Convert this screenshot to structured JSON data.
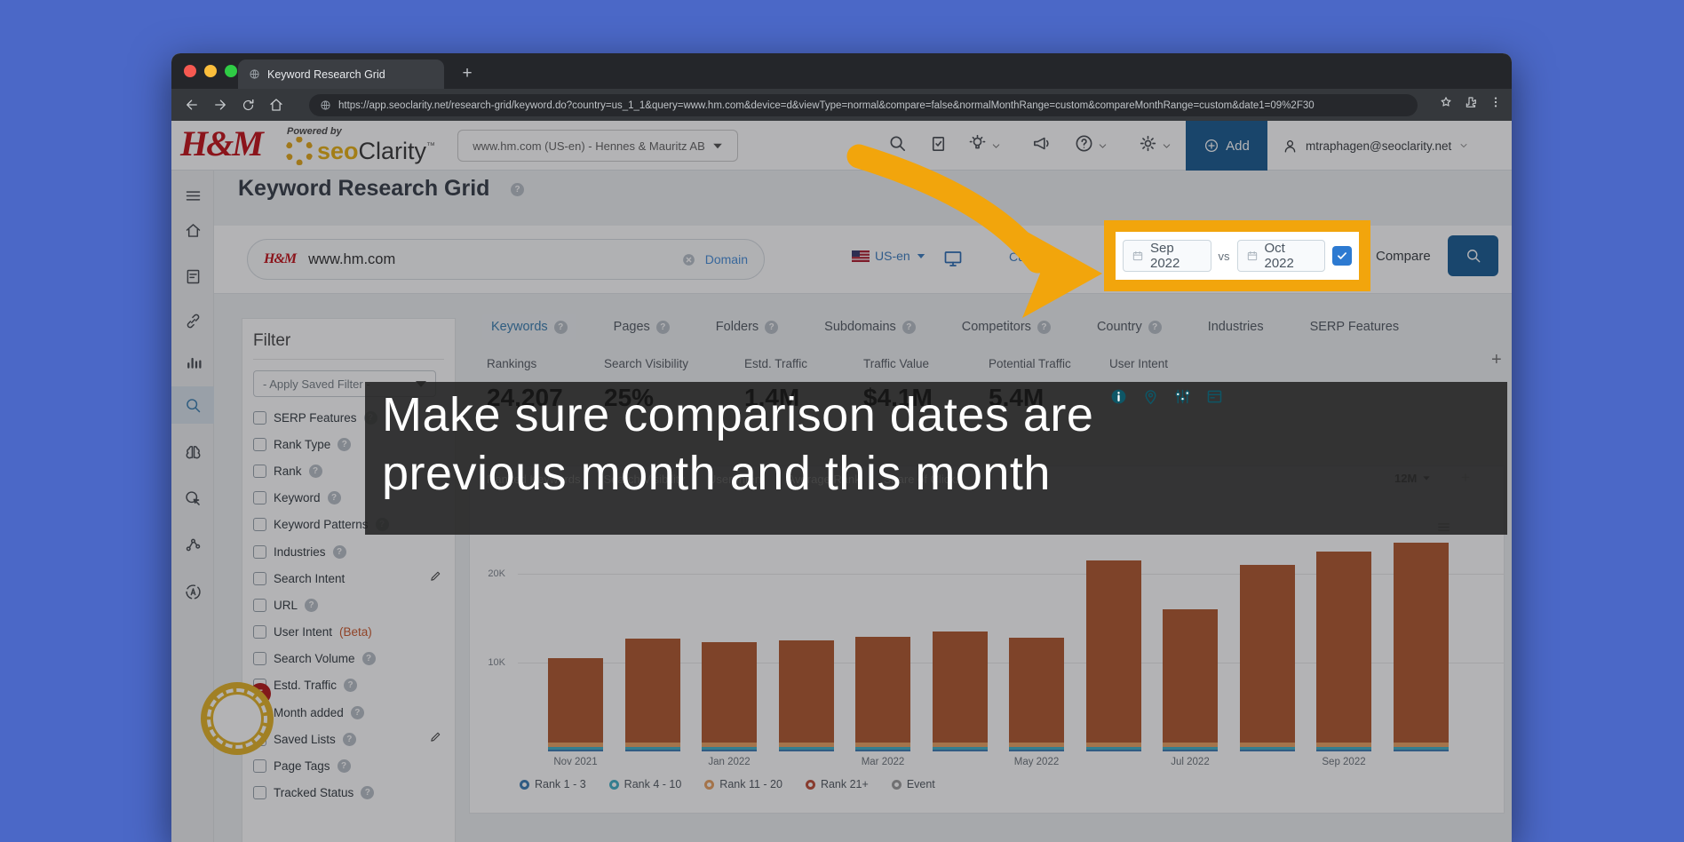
{
  "browser": {
    "tab_title": "Keyword Research Grid",
    "new_tab_label": "+",
    "url": "https://app.seoclarity.net/research-grid/keyword.do?country=us_1_1&query=www.hm.com&device=d&viewType=normal&compare=false&normalMonthRange=custom&compareMonthRange=custom&date1=09%2F30",
    "traffic_lights": [
      "#f55951",
      "#fbbe3c",
      "#2fcc45"
    ]
  },
  "header": {
    "brand_hm": "H&M",
    "powered_by": "Powered by",
    "brand_seo": "seo",
    "brand_clarity": "Clarity",
    "brand_tm": "TM",
    "domain_selector": "www.hm.com (US-en) - Hennes & Mauritz AB",
    "add_label": "Add",
    "user_email": "mtraphagen@seoclarity.net",
    "accent_blue": "#1d5e92"
  },
  "sidebar": {
    "items": [
      {
        "icon": "menu-icon",
        "y": 84
      },
      {
        "icon": "home-icon",
        "y": 123
      },
      {
        "icon": "report-icon",
        "y": 175
      },
      {
        "icon": "link-icon",
        "y": 225
      },
      {
        "icon": "bar-chart-icon",
        "y": 271
      },
      {
        "icon": "search-icon",
        "y": 320,
        "active": true
      },
      {
        "icon": "brain-icon",
        "y": 373
      },
      {
        "icon": "click-icon",
        "y": 425
      },
      {
        "icon": "network-icon",
        "y": 477
      },
      {
        "icon": "translate-icon",
        "y": 530
      }
    ]
  },
  "page": {
    "title": "Keyword Research Grid"
  },
  "searchbar": {
    "query": "www.hm.com",
    "domain_chip": "Domain",
    "locale": "US-en",
    "range_dropdown": "Custom",
    "date_from": "Sep 2022",
    "vs_label": "vs",
    "date_to": "Oct 2022",
    "compare_label": "Compare",
    "compare_checked": true,
    "highlight_color": "#f2a50c"
  },
  "filter": {
    "title": "Filter",
    "saved_filter_placeholder": "- Apply Saved Filter -",
    "badge_count": "5",
    "items": [
      {
        "label": "SERP Features",
        "help": true
      },
      {
        "label": "Rank Type",
        "help": true
      },
      {
        "label": "Rank",
        "help": true
      },
      {
        "label": "Keyword",
        "help": true
      },
      {
        "label": "Keyword Patterns",
        "help": true
      },
      {
        "label": "Industries",
        "help": true
      },
      {
        "label": "Search Intent",
        "pencil": true
      },
      {
        "label": "URL",
        "help": true
      },
      {
        "label": "User Intent",
        "beta": "(Beta)"
      },
      {
        "label": "Search Volume",
        "help": true
      },
      {
        "label": "Estd. Traffic",
        "help": true
      },
      {
        "label": "Month added",
        "help": true
      },
      {
        "label": "Saved Lists",
        "help": true,
        "pencil": true
      },
      {
        "label": "Page Tags",
        "help": true
      },
      {
        "label": "Tracked Status",
        "help": true
      }
    ]
  },
  "tabs": [
    {
      "label": "Keywords",
      "help": true,
      "active": true
    },
    {
      "label": "Pages",
      "help": true
    },
    {
      "label": "Folders",
      "help": true
    },
    {
      "label": "Subdomains",
      "help": true
    },
    {
      "label": "Competitors",
      "help": true
    },
    {
      "label": "Country",
      "help": true
    },
    {
      "label": "Industries"
    },
    {
      "label": "SERP Features"
    }
  ],
  "metrics": [
    {
      "label": "Rankings",
      "value": "24,207"
    },
    {
      "label": "Search Visibility",
      "value": "25%"
    },
    {
      "label": "Estd. Traffic",
      "value": "1.4M"
    },
    {
      "label": "Traffic Value",
      "value": "$4.1M"
    },
    {
      "label": "Potential Traffic",
      "value": "5.4M"
    },
    {
      "label": "User Intent",
      "icons": [
        "info-icon",
        "pin-icon",
        "sliders-icon",
        "card-icon"
      ]
    }
  ],
  "chart_tabs": {
    "items": [
      "Ranked Keywords",
      "Search Visibility",
      "User Intent",
      "Average Rank",
      "Share of Clicks"
    ],
    "range": "12M",
    "plus": "+"
  },
  "overlay": {
    "line1": "Make sure comparison dates are",
    "line2": "previous month and this month",
    "arrow_color": "#f2a50c"
  },
  "chart_data": {
    "type": "bar",
    "stacked": true,
    "x": [
      "Nov 2021",
      "Dec 2021",
      "Jan 2022",
      "Feb 2022",
      "Mar 2022",
      "Apr 2022",
      "May 2022",
      "Jun 2022",
      "Jul 2022",
      "Aug 2022",
      "Sep 2022",
      "Oct 2022"
    ],
    "x_tick_labels": [
      "Nov 2021",
      "Jan 2022",
      "Mar 2022",
      "May 2022",
      "Jul 2022",
      "Sep 2022"
    ],
    "series": [
      {
        "name": "Rank 1 - 3",
        "color": "#3f7fb5",
        "values": [
          250,
          250,
          250,
          250,
          250,
          250,
          250,
          250,
          250,
          250,
          250,
          250
        ]
      },
      {
        "name": "Rank 4 - 10",
        "color": "#46b2c8",
        "values": [
          250,
          250,
          250,
          250,
          250,
          250,
          250,
          250,
          250,
          250,
          250,
          250
        ]
      },
      {
        "name": "Rank 11 - 20",
        "color": "#e9a364",
        "values": [
          500,
          500,
          500,
          500,
          500,
          500,
          500,
          500,
          500,
          500,
          500,
          500
        ]
      },
      {
        "name": "Rank 21+",
        "color": "#b25b32",
        "values": [
          9500,
          11700,
          11300,
          11500,
          11900,
          12500,
          11800,
          20500,
          15000,
          20000,
          21500,
          22500
        ]
      }
    ],
    "legend": [
      {
        "name": "Rank 1 - 3",
        "color": "#3f7fb5"
      },
      {
        "name": "Rank 4 - 10",
        "color": "#46b2c8"
      },
      {
        "name": "Rank 11 - 20",
        "color": "#e9a364"
      },
      {
        "name": "Rank 21+",
        "color": "#c0503a"
      },
      {
        "name": "Event",
        "color": "#9e9e9e"
      }
    ],
    "y_ticks": [
      {
        "label": "10K",
        "value": 10000
      },
      {
        "label": "20K",
        "value": 20000
      }
    ],
    "ylim": [
      0,
      24500
    ],
    "grid": true,
    "legend_position": "bottom",
    "title": "",
    "xlabel": "",
    "ylabel": ""
  }
}
